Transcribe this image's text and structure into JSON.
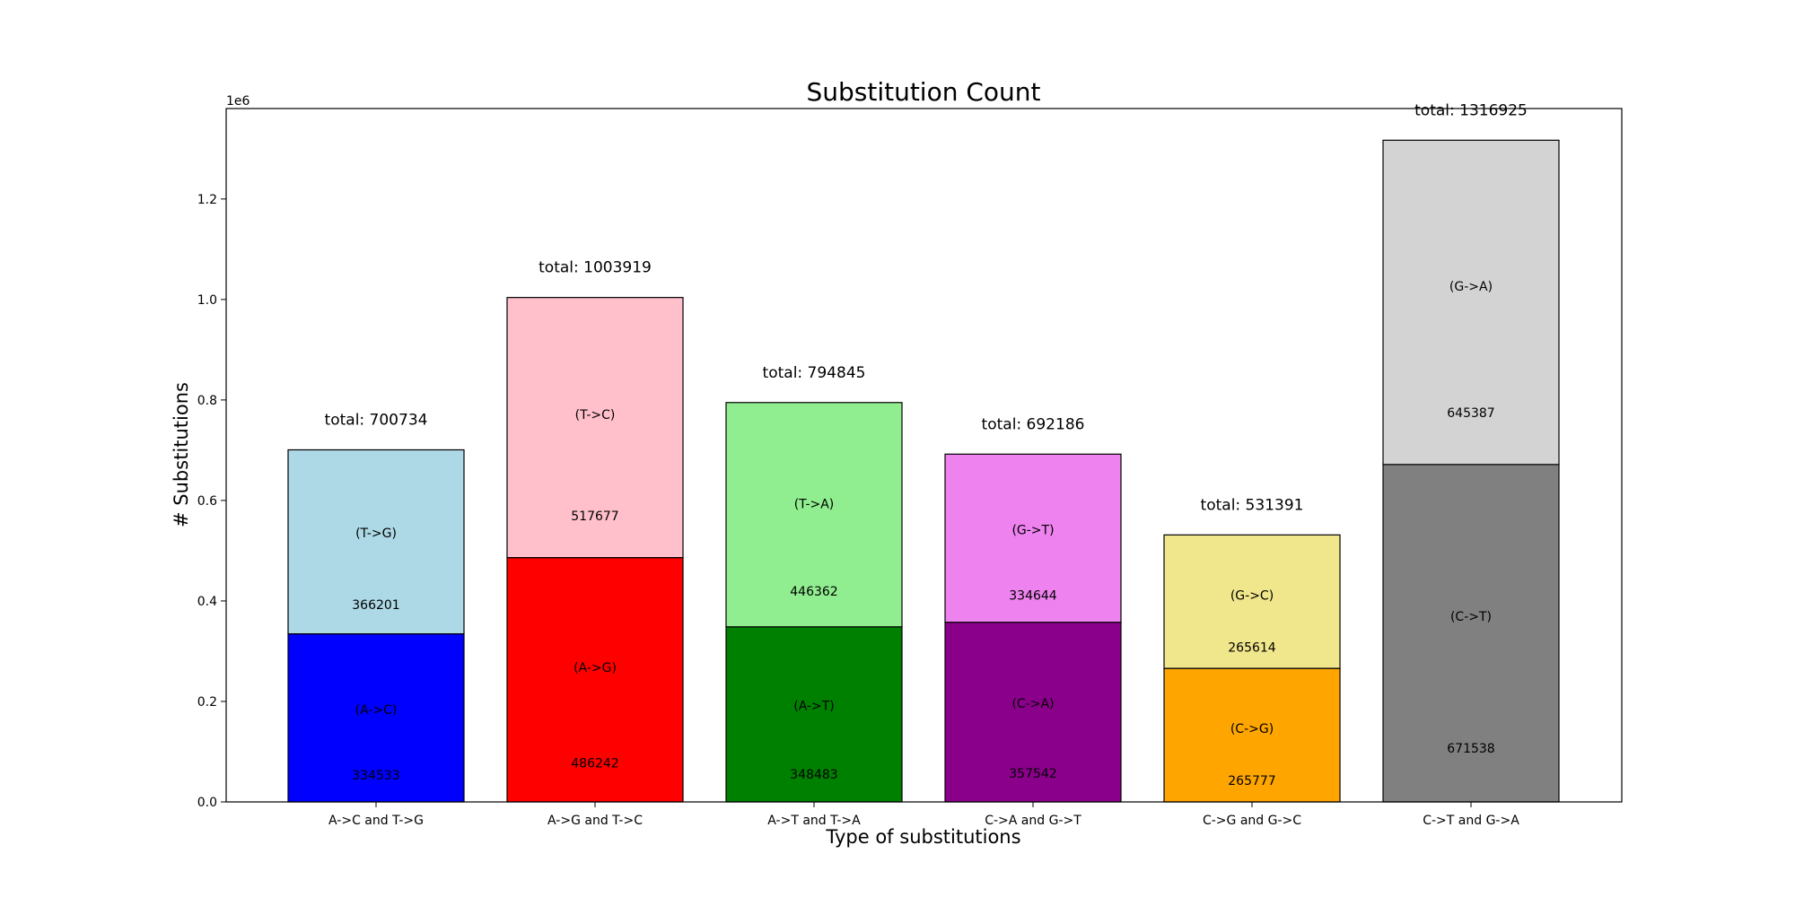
{
  "chart_data": {
    "type": "bar",
    "stacked": true,
    "title": "Substitution Count",
    "xlabel": "Type of substitutions",
    "ylabel": "# Substitutions",
    "y_offset_text": "1e6",
    "ylim": [
      0,
      1380000
    ],
    "yticks": [
      {
        "value": 0,
        "label": "0.0"
      },
      {
        "value": 200000,
        "label": "0.2"
      },
      {
        "value": 400000,
        "label": "0.4"
      },
      {
        "value": 600000,
        "label": "0.6"
      },
      {
        "value": 800000,
        "label": "0.8"
      },
      {
        "value": 1000000,
        "label": "1.0"
      },
      {
        "value": 1200000,
        "label": "1.2"
      }
    ],
    "grid": false,
    "categories": [
      "A->C and T->G",
      "A->G and T->C",
      "A->T and T->A",
      "C->A and G->T",
      "C->G and G->C",
      "C->T and G->A"
    ],
    "bars": [
      {
        "total": 700734,
        "total_label": "total: 700734",
        "segments": [
          {
            "label": "(A->C)",
            "value": 334533,
            "value_label": "334533",
            "color": "#0000ff"
          },
          {
            "label": "(T->G)",
            "value": 366201,
            "value_label": "366201",
            "color": "#add8e6"
          }
        ]
      },
      {
        "total": 1003919,
        "total_label": "total: 1003919",
        "segments": [
          {
            "label": "(A->G)",
            "value": 486242,
            "value_label": "486242",
            "color": "#ff0000"
          },
          {
            "label": "(T->C)",
            "value": 517677,
            "value_label": "517677",
            "color": "#ffc0cb"
          }
        ]
      },
      {
        "total": 794845,
        "total_label": "total: 794845",
        "segments": [
          {
            "label": "(A->T)",
            "value": 348483,
            "value_label": "348483",
            "color": "#008000"
          },
          {
            "label": "(T->A)",
            "value": 446362,
            "value_label": "446362",
            "color": "#90ee90"
          }
        ]
      },
      {
        "total": 692186,
        "total_label": "total: 692186",
        "segments": [
          {
            "label": "(C->A)",
            "value": 357542,
            "value_label": "357542",
            "color": "#8b008b"
          },
          {
            "label": "(G->T)",
            "value": 334644,
            "value_label": "334644",
            "color": "#ee82ee"
          }
        ]
      },
      {
        "total": 531391,
        "total_label": "total: 531391",
        "segments": [
          {
            "label": "(C->G)",
            "value": 265777,
            "value_label": "265777",
            "color": "#ffa500"
          },
          {
            "label": "(G->C)",
            "value": 265614,
            "value_label": "265614",
            "color": "#f0e68c"
          }
        ]
      },
      {
        "total": 1316925,
        "total_label": "total: 1316925",
        "segments": [
          {
            "label": "(C->T)",
            "value": 671538,
            "value_label": "671538",
            "color": "#808080"
          },
          {
            "label": "(G->A)",
            "value": 645387,
            "value_label": "645387",
            "color": "#d3d3d3"
          }
        ]
      }
    ]
  }
}
